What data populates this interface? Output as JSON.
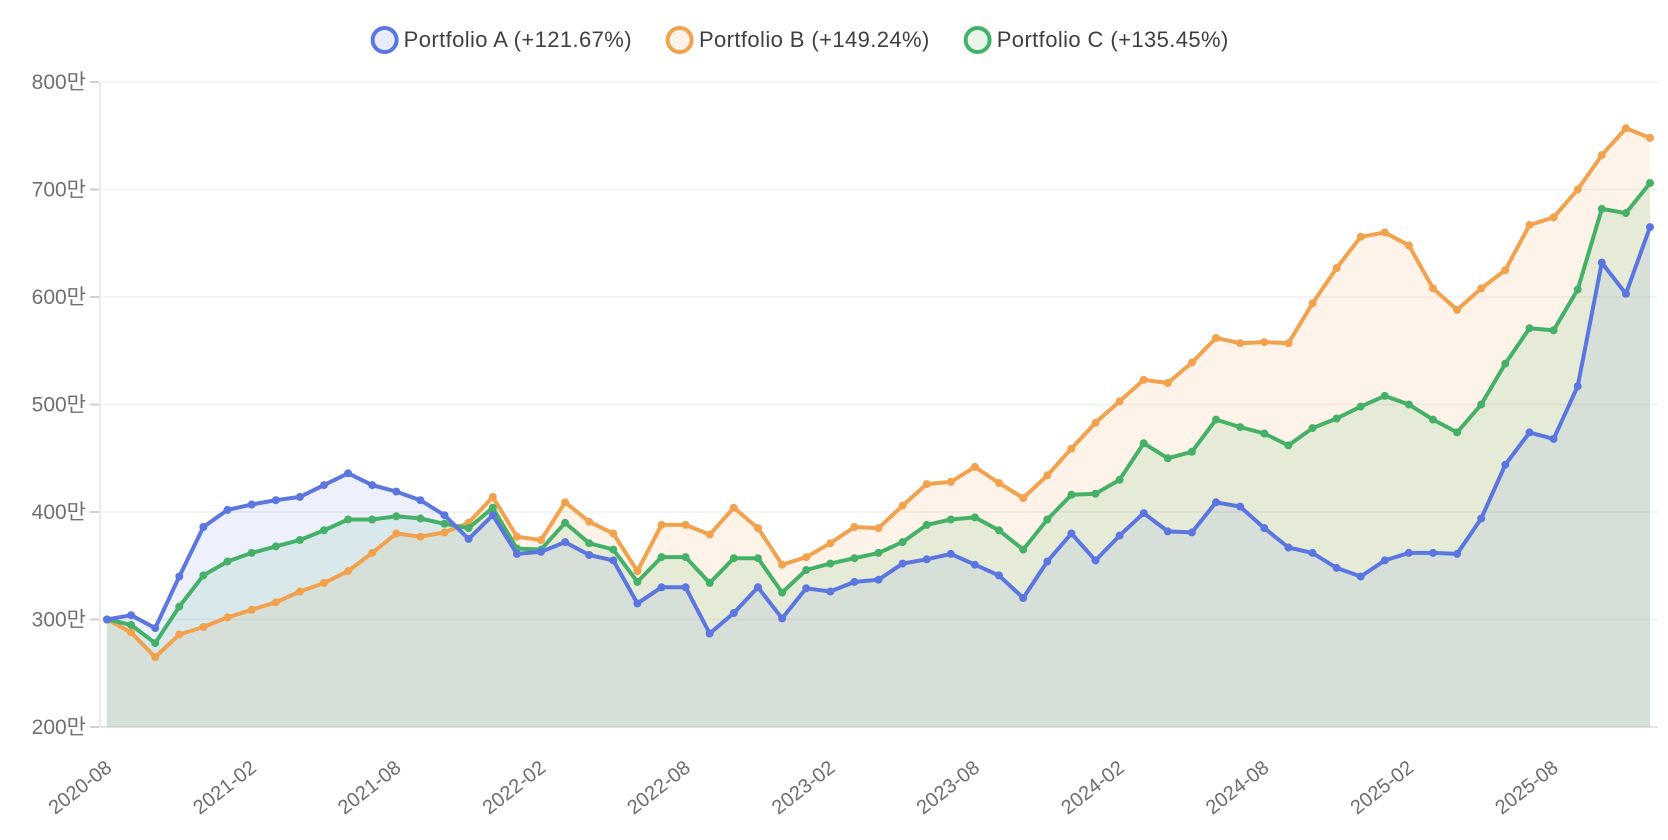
{
  "chart_data": {
    "type": "line",
    "title": "",
    "value_unit_suffix": "만",
    "legend_position": "top",
    "grid": true,
    "y_axis": {
      "min": 200,
      "max": 800,
      "step": 100,
      "tick_labels": [
        "800만",
        "700만",
        "600만",
        "500만",
        "400만",
        "300만",
        "200만"
      ]
    },
    "x_axis": {
      "tick_every": 6,
      "tick_labels": [
        "2020-08",
        "2021-02",
        "2021-08",
        "2022-02",
        "2022-08",
        "2023-02",
        "2023-08",
        "2024-02",
        "2024-08",
        "2025-02",
        "2025-08"
      ],
      "categories": [
        "2020-08",
        "2020-09",
        "2020-10",
        "2020-11",
        "2020-12",
        "2021-01",
        "2021-02",
        "2021-03",
        "2021-04",
        "2021-05",
        "2021-06",
        "2021-07",
        "2021-08",
        "2021-09",
        "2021-10",
        "2021-11",
        "2021-12",
        "2022-01",
        "2022-02",
        "2022-03",
        "2022-04",
        "2022-05",
        "2022-06",
        "2022-07",
        "2022-08",
        "2022-09",
        "2022-10",
        "2022-11",
        "2022-12",
        "2023-01",
        "2023-02",
        "2023-03",
        "2023-04",
        "2023-05",
        "2023-06",
        "2023-07",
        "2023-08",
        "2023-09",
        "2023-10",
        "2023-11",
        "2023-12",
        "2024-01",
        "2024-02",
        "2024-03",
        "2024-04",
        "2024-05",
        "2024-06",
        "2024-07",
        "2024-08",
        "2024-09",
        "2024-10",
        "2024-11",
        "2024-12",
        "2025-01",
        "2025-02",
        "2025-03",
        "2025-04",
        "2025-05",
        "2025-06",
        "2025-07",
        "2025-08",
        "2025-09",
        "2025-10",
        "2025-11",
        "2025-12"
      ]
    },
    "series": [
      {
        "name": "Portfolio A",
        "legend_label": "Portfolio A (+121.67%)",
        "return_pct": "+121.67%",
        "color": "#5B76E0",
        "legend_fill": "#E8EDFB",
        "area_opacity": 0.1,
        "values": [
          300,
          304,
          292,
          340,
          386,
          402,
          407,
          411,
          414,
          425,
          436,
          425,
          419,
          411,
          397,
          375,
          397,
          361,
          363,
          372,
          360,
          355,
          315,
          330,
          330,
          287,
          306,
          330,
          301,
          329,
          326,
          335,
          337,
          352,
          356,
          361,
          351,
          341,
          320,
          354,
          380,
          355,
          378,
          399,
          382,
          381,
          409,
          405,
          385,
          367,
          362,
          348,
          340,
          355,
          362,
          362,
          361,
          394,
          444,
          474,
          468,
          517,
          632,
          603,
          665
        ]
      },
      {
        "name": "Portfolio B",
        "legend_label": "Portfolio B (+149.24%)",
        "return_pct": "+149.24%",
        "color": "#F2A24C",
        "legend_fill": "#FCF4E8",
        "area_opacity": 0.13,
        "values": [
          300,
          288,
          265,
          286,
          293,
          302,
          309,
          316,
          326,
          334,
          345,
          362,
          380,
          377,
          381,
          390,
          414,
          377,
          374,
          409,
          391,
          380,
          345,
          388,
          388,
          379,
          404,
          385,
          351,
          358,
          371,
          386,
          385,
          406,
          426,
          428,
          442,
          427,
          413,
          434,
          459,
          483,
          503,
          523,
          520,
          539,
          562,
          557,
          558,
          557,
          594,
          627,
          656,
          660,
          648,
          608,
          588,
          608,
          625,
          667,
          674,
          700,
          732,
          757,
          748
        ]
      },
      {
        "name": "Portfolio C",
        "legend_label": "Portfolio C (+135.45%)",
        "return_pct": "+135.45%",
        "color": "#45B168",
        "legend_fill": "#E7F5EC",
        "area_opacity": 0.12,
        "values": [
          300,
          295,
          278,
          312,
          341,
          354,
          362,
          368,
          374,
          383,
          393,
          393,
          396,
          394,
          389,
          385,
          404,
          366,
          365,
          390,
          371,
          365,
          335,
          358,
          358,
          334,
          357,
          357,
          325,
          346,
          352,
          357,
          362,
          372,
          388,
          393,
          395,
          383,
          365,
          393,
          416,
          417,
          430,
          464,
          450,
          456,
          486,
          479,
          473,
          462,
          478,
          487,
          498,
          508,
          500,
          486,
          474,
          500,
          538,
          571,
          569,
          607,
          682,
          678,
          706
        ]
      }
    ]
  }
}
